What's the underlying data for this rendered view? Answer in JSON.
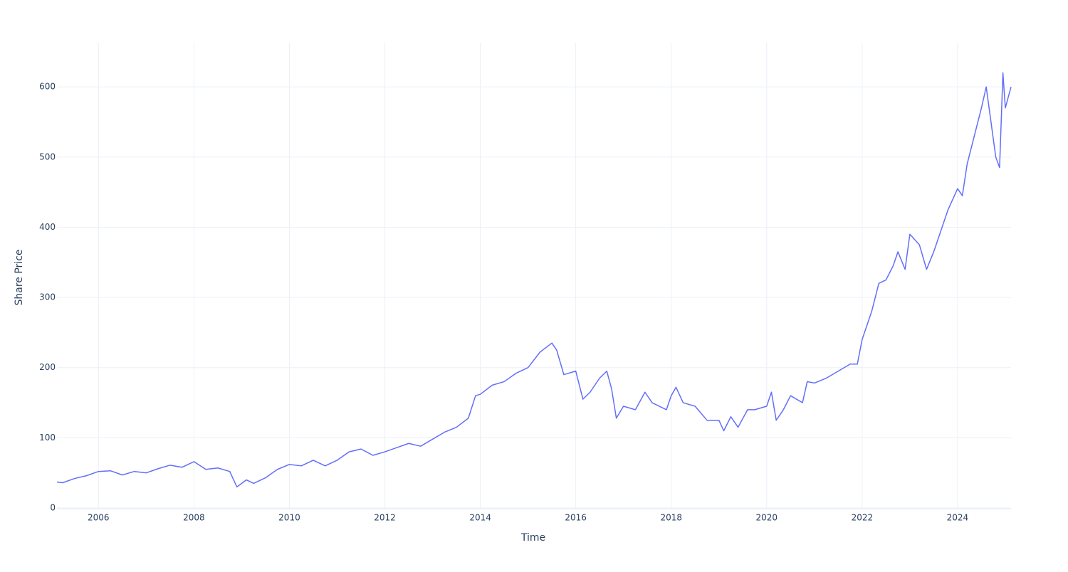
{
  "chart_data": {
    "type": "line",
    "x_label": "Time",
    "y_label": "Share Price",
    "x": [
      2005.13,
      2005.25,
      2005.5,
      2005.75,
      2006.0,
      2006.25,
      2006.5,
      2006.75,
      2007.0,
      2007.25,
      2007.5,
      2007.75,
      2008.0,
      2008.25,
      2008.5,
      2008.75,
      2008.9,
      2009.1,
      2009.25,
      2009.5,
      2009.75,
      2010.0,
      2010.25,
      2010.5,
      2010.75,
      2011.0,
      2011.25,
      2011.5,
      2011.75,
      2012.0,
      2012.25,
      2012.5,
      2012.75,
      2013.0,
      2013.25,
      2013.5,
      2013.75,
      2013.9,
      2014.0,
      2014.25,
      2014.5,
      2014.75,
      2015.0,
      2015.25,
      2015.5,
      2015.6,
      2015.75,
      2016.0,
      2016.15,
      2016.3,
      2016.5,
      2016.65,
      2016.75,
      2016.85,
      2017.0,
      2017.25,
      2017.45,
      2017.6,
      2017.9,
      2018.0,
      2018.1,
      2018.25,
      2018.5,
      2018.75,
      2019.0,
      2019.1,
      2019.25,
      2019.4,
      2019.6,
      2019.75,
      2020.0,
      2020.1,
      2020.2,
      2020.35,
      2020.5,
      2020.75,
      2020.85,
      2021.0,
      2021.25,
      2021.5,
      2021.75,
      2021.9,
      2022.0,
      2022.2,
      2022.35,
      2022.5,
      2022.65,
      2022.75,
      2022.9,
      2023.0,
      2023.2,
      2023.35,
      2023.5,
      2023.65,
      2023.8,
      2024.0,
      2024.1,
      2024.2,
      2024.35,
      2024.5,
      2024.6,
      2024.68,
      2024.8,
      2024.88,
      2024.95,
      2025.0,
      2025.12
    ],
    "series": [
      {
        "name": "Share Price",
        "color": "#636efa",
        "values": [
          37,
          36,
          42,
          46,
          52,
          53,
          47,
          52,
          50,
          56,
          61,
          58,
          66,
          55,
          57,
          52,
          30,
          40,
          35,
          43,
          55,
          62,
          60,
          68,
          60,
          68,
          80,
          84,
          75,
          80,
          86,
          92,
          88,
          98,
          108,
          115,
          128,
          160,
          162,
          175,
          180,
          192,
          200,
          222,
          235,
          225,
          190,
          195,
          155,
          165,
          185,
          195,
          170,
          128,
          145,
          140,
          165,
          150,
          140,
          160,
          172,
          150,
          145,
          125,
          125,
          110,
          130,
          115,
          140,
          140,
          145,
          165,
          125,
          140,
          160,
          150,
          180,
          178,
          185,
          195,
          205,
          205,
          240,
          280,
          320,
          325,
          345,
          365,
          340,
          390,
          375,
          340,
          365,
          395,
          425,
          455,
          445,
          490,
          530,
          570,
          600,
          560,
          500,
          485,
          620,
          570,
          600
        ]
      }
    ],
    "xlim": [
      2005.13,
      2025.12
    ],
    "xticks": [
      2006,
      2008,
      2010,
      2012,
      2014,
      2016,
      2018,
      2020,
      2022,
      2024
    ],
    "ylim": [
      0,
      663
    ],
    "yticks": [
      0,
      100,
      200,
      300,
      400,
      500,
      600
    ],
    "grid": true
  }
}
